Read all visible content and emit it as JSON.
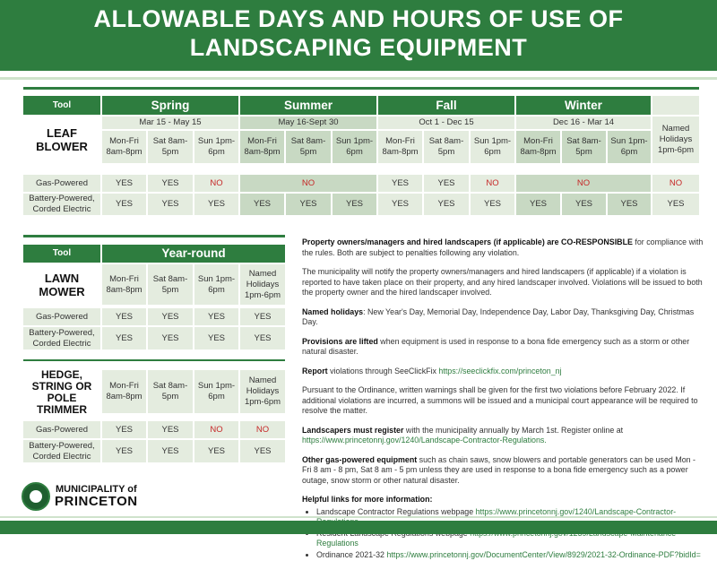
{
  "header": {
    "line1": "ALLOWABLE DAYS AND HOURS OF USE OF",
    "line2": "LANDSCAPING EQUIPMENT"
  },
  "table1": {
    "tool_header": "Tool",
    "tool": "LEAF BLOWER",
    "seasons": [
      {
        "name": "Spring",
        "dates": "Mar 15 - May 15"
      },
      {
        "name": "Summer",
        "dates": "May 16-Sept 30"
      },
      {
        "name": "Fall",
        "dates": "Oct 1 - Dec 15"
      },
      {
        "name": "Winter",
        "dates": "Dec 16 - Mar 14"
      }
    ],
    "days": [
      "Mon-Fri 8am-8pm",
      "Sat 8am-5pm",
      "Sun 1pm-6pm"
    ],
    "holidays": "Named Holidays 1pm-6pm",
    "rows": [
      {
        "label": "Gas-Powered",
        "spring": [
          "YES",
          "YES",
          "NO"
        ],
        "summer": "NO",
        "fall": [
          "YES",
          "YES",
          "NO"
        ],
        "winter": "NO",
        "holiday": "NO"
      },
      {
        "label": "Battery-Powered, Corded Electric",
        "spring": [
          "YES",
          "YES",
          "YES"
        ],
        "summer": [
          "YES",
          "YES",
          "YES"
        ],
        "fall": [
          "YES",
          "YES",
          "YES"
        ],
        "winter": [
          "YES",
          "YES",
          "YES"
        ],
        "holiday": "YES"
      }
    ]
  },
  "table2": {
    "tool_header": "Tool",
    "period": "Year-round",
    "columns": [
      "Mon-Fri 8am-8pm",
      "Sat 8am-5pm",
      "Sun 1pm-6pm",
      "Named Holidays 1pm-6pm"
    ],
    "tools": [
      {
        "name": "LAWN MOWER",
        "rows": [
          {
            "label": "Gas-Powered",
            "values": [
              "YES",
              "YES",
              "YES",
              "YES"
            ]
          },
          {
            "label": "Battery-Powered, Corded Electric",
            "values": [
              "YES",
              "YES",
              "YES",
              "YES"
            ]
          }
        ]
      },
      {
        "name": "HEDGE, STRING OR POLE TRIMMER",
        "rows": [
          {
            "label": "Gas-Powered",
            "values": [
              "YES",
              "YES",
              "NO",
              "NO"
            ]
          },
          {
            "label": "Battery-Powered, Corded Electric",
            "values": [
              "YES",
              "YES",
              "YES",
              "YES"
            ]
          }
        ]
      }
    ]
  },
  "info": {
    "p1_bold": "Property owners/managers and hired landscapers (if applicable) are CO-RESPONSIBLE",
    "p1_rest": " for compliance with the rules. Both are subject to penalties following any violation.",
    "p2": "The municipality will notify the property owners/managers and hired landscapers (if applicable) if a violation is reported to have taken place on their property, and any hired landscaper involved. Violations will be issued to both the property owner and the hired landscaper involved.",
    "p3_bold": "Named holidays",
    "p3_rest": ": New Year's Day, Memorial Day, Independence Day, Labor Day, Thanksgiving Day, Christmas Day.",
    "p4_bold": "Provisions are lifted",
    "p4_rest": " when equipment is used in response to a bona fide emergency such as a storm or other natural disaster.",
    "p5_bold": "Report",
    "p5_rest": " violations through SeeClickFix ",
    "p5_link": "https://seeclickfix.com/princeton_nj",
    "p6": "Pursuant to the Ordinance, written warnings shall be given for the first two violations before February 2022.  If additional violations are incurred, a summons will be issued and a municipal court appearance will be required to resolve the matter.",
    "p7_bold": "Landscapers must register",
    "p7_rest": " with the municipality annually by March 1st. Register online at",
    "p7_link": "https://www.princetonnj.gov/1240/Landscape-Contractor-Regulations.",
    "p8_bold": "Other gas-powered equipment",
    "p8_rest": " such as chain saws, snow blowers and portable generators can be used Mon - Fri 8 am - 8 pm, Sat 8 am - 5 pm unless they are used in response to a bona fide emergency such as a power outage, snow storm or other natural disaster.",
    "links_title": "Helpful links for more information:",
    "links": [
      {
        "label": "Landscape Contractor Regulations webpage ",
        "url": "https://www.princetonnj.gov/1240/Landscape-Contractor-Regulations"
      },
      {
        "label": "Resident Landscape Regulations webpage ",
        "url": "https://www.princetonnj.gov/1239/Landscape-Maintenance-Regulations"
      },
      {
        "label": "Ordinance 2021-32 ",
        "url": "https://www.princetonnj.gov/DocumentCenter/View/8929/2021-32-Ordinance-PDF?bidId="
      }
    ]
  },
  "logo": {
    "line1": "MUNICIPALITY of",
    "line2": "PRINCETON"
  },
  "colors": {
    "brand_green": "#2e7d3f",
    "light_green": "#e4ecdf",
    "no_red": "#c62828"
  }
}
